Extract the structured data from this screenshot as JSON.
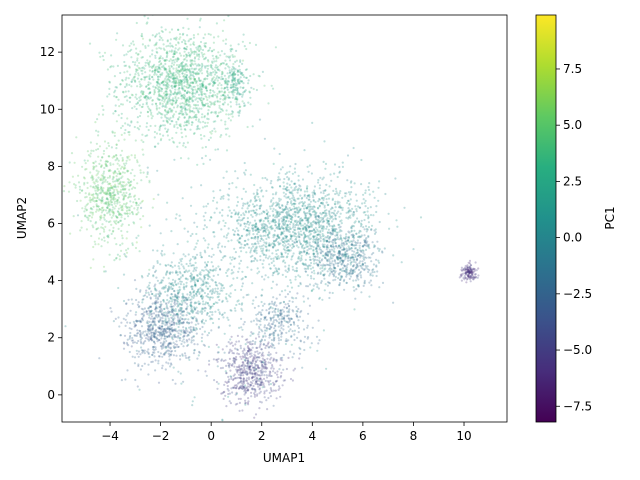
{
  "chart_data": {
    "type": "scatter",
    "xlabel": "UMAP1",
    "ylabel": "UMAP2",
    "xlim": [
      -5.9,
      11.7
    ],
    "ylim": [
      -0.95,
      13.3
    ],
    "x_ticks": [
      -4,
      -2,
      0,
      2,
      4,
      6,
      8,
      10
    ],
    "y_ticks": [
      0,
      2,
      4,
      6,
      8,
      10,
      12
    ],
    "colorbar": {
      "label": "PC1",
      "range": [
        -8.2,
        9.9
      ],
      "ticks": [
        -7.5,
        -5.0,
        -2.5,
        0.0,
        2.5,
        5.0,
        7.5
      ],
      "tick_labels": [
        "−7.5",
        "−5.0",
        "−2.5",
        "0.0",
        "2.5",
        "5.0",
        "7.5"
      ],
      "colormap": "viridis"
    },
    "clusters": [
      {
        "center": [
          -1.2,
          10.9
        ],
        "spread": [
          1.25,
          0.95
        ],
        "pc1": 3.6,
        "count": 1500
      },
      {
        "center": [
          1.0,
          10.9
        ],
        "spread": [
          0.25,
          0.45
        ],
        "pc1": 2.2,
        "count": 140
      },
      {
        "center": [
          -4.0,
          7.0
        ],
        "spread": [
          0.65,
          0.85
        ],
        "pc1": 4.8,
        "count": 650
      },
      {
        "center": [
          3.4,
          5.9
        ],
        "spread": [
          1.5,
          0.9
        ],
        "pc1": 0.6,
        "count": 1600
      },
      {
        "center": [
          5.3,
          4.8
        ],
        "spread": [
          0.7,
          0.55
        ],
        "pc1": -1.5,
        "count": 450
      },
      {
        "center": [
          -0.9,
          3.6
        ],
        "spread": [
          0.9,
          0.65
        ],
        "pc1": 0.4,
        "count": 550
      },
      {
        "center": [
          -2.0,
          2.3
        ],
        "spread": [
          0.75,
          0.65
        ],
        "pc1": -2.6,
        "count": 650
      },
      {
        "center": [
          1.6,
          0.8
        ],
        "spread": [
          0.6,
          0.55
        ],
        "pc1": -4.8,
        "count": 550
      },
      {
        "center": [
          2.7,
          2.6
        ],
        "spread": [
          0.6,
          0.55
        ],
        "pc1": -2.0,
        "count": 280
      },
      {
        "center": [
          10.2,
          4.3
        ],
        "spread": [
          0.18,
          0.13
        ],
        "pc1": -5.6,
        "count": 130
      },
      {
        "center": [
          0.6,
          4.2
        ],
        "spread": [
          1.6,
          2.5
        ],
        "pc1": 0.8,
        "count": 220
      }
    ]
  }
}
